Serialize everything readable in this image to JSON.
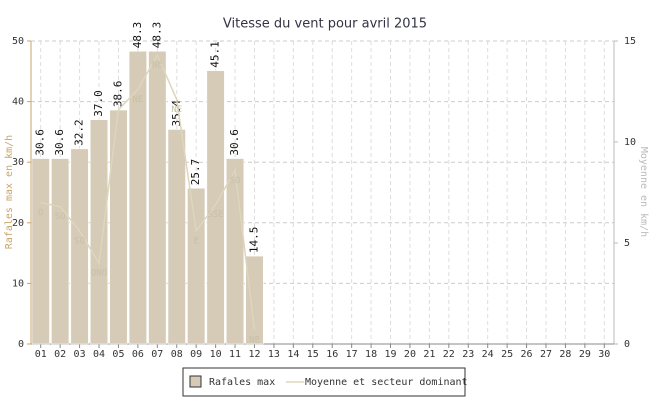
{
  "chart_data": {
    "type": "bar",
    "title": "Vitesse du vent pour avril 2015",
    "y_label": "Rafales max en km/h",
    "y2_label": "Moyenne en km/h",
    "categories": [
      "01",
      "02",
      "03",
      "04",
      "05",
      "06",
      "07",
      "08",
      "09",
      "10",
      "11",
      "12",
      "13",
      "14",
      "15",
      "16",
      "17",
      "18",
      "19",
      "20",
      "21",
      "22",
      "23",
      "24",
      "25",
      "26",
      "27",
      "28",
      "29",
      "30"
    ],
    "ylim": [
      0,
      50
    ],
    "yticks": [
      0,
      10,
      20,
      30,
      40,
      50
    ],
    "y2lim": [
      0,
      15
    ],
    "y2ticks": [
      0,
      5,
      10,
      15
    ],
    "grid": true,
    "series": [
      {
        "name": "Rafales max",
        "type": "bar",
        "color": "#d5cbb6",
        "values": [
          30.6,
          30.6,
          32.2,
          37,
          38.6,
          48.3,
          48.3,
          35.4,
          25.7,
          45.1,
          30.6,
          14.5,
          null,
          null,
          null,
          null,
          null,
          null,
          null,
          null,
          null,
          null,
          null,
          null,
          null,
          null,
          null,
          null,
          null,
          null
        ],
        "value_labels": [
          "30.6",
          "30.6",
          "32.2",
          "37.0",
          "38.6",
          "48.3",
          "48.3",
          "35.4",
          "25.7",
          "45.1",
          "30.6",
          "14.5",
          null,
          null,
          null,
          null,
          null,
          null,
          null,
          null,
          null,
          null,
          null,
          null,
          null,
          null,
          null,
          null,
          null,
          null
        ]
      },
      {
        "name": "Moyenne et secteur dominant",
        "type": "line",
        "axis": "y2",
        "color": "#ddd6bc",
        "values": [
          7.0,
          6.8,
          5.6,
          4.0,
          11.6,
          12.6,
          14.3,
          12.1,
          5.6,
          6.9,
          8.6,
          0.7,
          null,
          null,
          null,
          null,
          null,
          null,
          null,
          null,
          null,
          null,
          null,
          null,
          null,
          null,
          null,
          null,
          null,
          null
        ],
        "directions": [
          "O",
          "SO",
          "SO",
          "ONO",
          null,
          "NE",
          "NE",
          "NE",
          "E",
          "SSE",
          "SO",
          "NE",
          null,
          null,
          null,
          null,
          null,
          null,
          null,
          null,
          null,
          null,
          null,
          null,
          null,
          null,
          null,
          null,
          null,
          null
        ]
      }
    ]
  }
}
